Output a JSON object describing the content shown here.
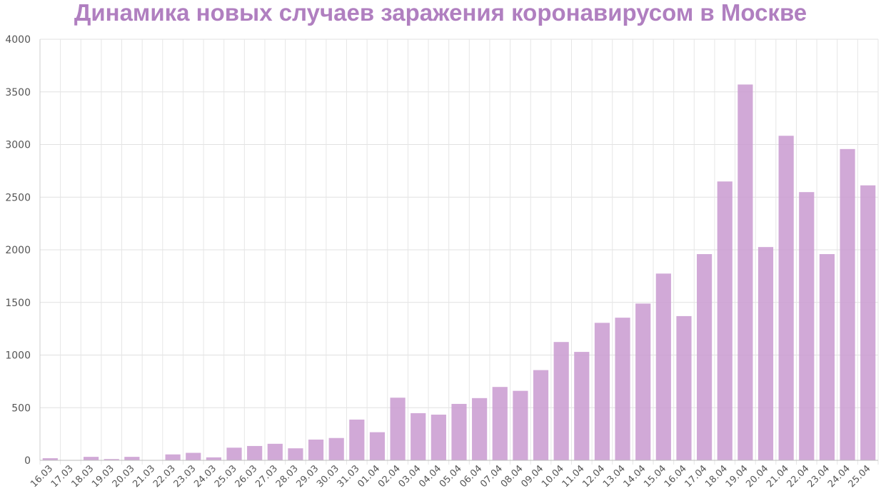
{
  "chart_data": {
    "type": "bar",
    "title": "Динамика новых случаев заражения коронавирусом в Москве",
    "xlabel": "",
    "ylabel": "",
    "ylim": [
      0,
      4000
    ],
    "yticks": [
      0,
      500,
      1000,
      1500,
      2000,
      2500,
      3000,
      3500,
      4000
    ],
    "grid": true,
    "legend": "none",
    "bar_color": "#c99ad0",
    "title_color": "#b07fc0",
    "categories": [
      "16.03",
      "17.03",
      "18.03",
      "19.03",
      "20.03",
      "21.03",
      "22.03",
      "23.03",
      "24.03",
      "25.03",
      "26.03",
      "27.03",
      "28.03",
      "29.03",
      "30.03",
      "31.03",
      "01.04",
      "02.04",
      "03.04",
      "04.04",
      "05.04",
      "06.04",
      "07.04",
      "08.04",
      "09.04",
      "10.04",
      "11.04",
      "12.04",
      "13.04",
      "14.04",
      "15.04",
      "16.04",
      "17.04",
      "18.04",
      "19.04",
      "20.04",
      "21.04",
      "22.04",
      "23.04",
      "24.04",
      "25.04"
    ],
    "values": [
      20,
      0,
      33,
      12,
      33,
      0,
      56,
      71,
      28,
      120,
      136,
      157,
      114,
      197,
      212,
      387,
      267,
      595,
      448,
      434,
      536,
      591,
      697,
      660,
      857,
      1124,
      1030,
      1306,
      1355,
      1489,
      1774,
      1370,
      1959,
      2649,
      3570,
      2026,
      3083,
      2548,
      1959,
      2957,
      2612
    ]
  }
}
